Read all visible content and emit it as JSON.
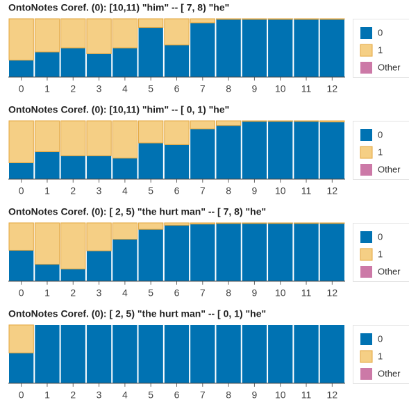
{
  "chart_data": [
    {
      "type": "stacked-bar",
      "title": "OntoNotes Coref. (0): [10,11) \"him\" -- [ 7, 8) \"he\"",
      "categories": [
        "0",
        "1",
        "2",
        "3",
        "4",
        "5",
        "6",
        "7",
        "8",
        "9",
        "10",
        "11",
        "12"
      ],
      "ylim": [
        0,
        1
      ],
      "series": [
        {
          "name": "0",
          "color": "#0072b2",
          "values": [
            0.29,
            0.43,
            0.5,
            0.4,
            0.5,
            0.85,
            0.55,
            0.93,
            0.99,
            0.99,
            0.99,
            0.99,
            0.99
          ]
        },
        {
          "name": "1",
          "color": "#f5cf85",
          "values": [
            0.71,
            0.57,
            0.5,
            0.6,
            0.5,
            0.15,
            0.45,
            0.07,
            0.01,
            0.01,
            0.01,
            0.01,
            0.01
          ]
        },
        {
          "name": "Other",
          "color": "#cc79a7",
          "values": [
            0,
            0,
            0,
            0,
            0,
            0,
            0,
            0,
            0,
            0,
            0,
            0,
            0
          ]
        }
      ]
    },
    {
      "type": "stacked-bar",
      "title": "OntoNotes Coref. (0): [10,11) \"him\" -- [ 0, 1) \"he\"",
      "categories": [
        "0",
        "1",
        "2",
        "3",
        "4",
        "5",
        "6",
        "7",
        "8",
        "9",
        "10",
        "11",
        "12"
      ],
      "ylim": [
        0,
        1
      ],
      "series": [
        {
          "name": "0",
          "color": "#0072b2",
          "values": [
            0.28,
            0.47,
            0.4,
            0.4,
            0.36,
            0.62,
            0.59,
            0.86,
            0.92,
            0.99,
            0.99,
            0.99,
            0.98
          ]
        },
        {
          "name": "1",
          "color": "#f5cf85",
          "values": [
            0.72,
            0.53,
            0.6,
            0.6,
            0.64,
            0.38,
            0.41,
            0.14,
            0.08,
            0.01,
            0.01,
            0.01,
            0.02
          ]
        },
        {
          "name": "Other",
          "color": "#cc79a7",
          "values": [
            0,
            0,
            0,
            0,
            0,
            0,
            0,
            0,
            0,
            0,
            0,
            0,
            0
          ]
        }
      ]
    },
    {
      "type": "stacked-bar",
      "title": "OntoNotes Coref. (0): [ 2, 5) \"the hurt man\" -- [ 7, 8) \"he\"",
      "categories": [
        "0",
        "1",
        "2",
        "3",
        "4",
        "5",
        "6",
        "7",
        "8",
        "9",
        "10",
        "11",
        "12"
      ],
      "ylim": [
        0,
        1
      ],
      "series": [
        {
          "name": "0",
          "color": "#0072b2",
          "values": [
            0.53,
            0.29,
            0.21,
            0.52,
            0.72,
            0.89,
            0.96,
            0.98,
            0.99,
            0.99,
            0.99,
            0.99,
            0.99
          ]
        },
        {
          "name": "1",
          "color": "#f5cf85",
          "values": [
            0.47,
            0.71,
            0.79,
            0.48,
            0.28,
            0.11,
            0.04,
            0.02,
            0.01,
            0.01,
            0.01,
            0.01,
            0.01
          ]
        },
        {
          "name": "Other",
          "color": "#cc79a7",
          "values": [
            0,
            0,
            0,
            0,
            0,
            0,
            0,
            0,
            0,
            0,
            0,
            0,
            0
          ]
        }
      ]
    },
    {
      "type": "stacked-bar",
      "title": "OntoNotes Coref. (0): [ 2, 5) \"the hurt man\" -- [ 0, 1) \"he\"",
      "categories": [
        "0",
        "1",
        "2",
        "3",
        "4",
        "5",
        "6",
        "7",
        "8",
        "9",
        "10",
        "11",
        "12"
      ],
      "ylim": [
        0,
        1
      ],
      "series": [
        {
          "name": "0",
          "color": "#0072b2",
          "values": [
            0.52,
            1,
            1,
            1,
            1,
            1,
            1,
            1,
            1,
            1,
            1,
            1,
            1
          ]
        },
        {
          "name": "1",
          "color": "#f5cf85",
          "values": [
            0.48,
            0,
            0,
            0,
            0,
            0,
            0,
            0,
            0,
            0,
            0,
            0,
            0
          ]
        },
        {
          "name": "Other",
          "color": "#cc79a7",
          "values": [
            0,
            0,
            0,
            0,
            0,
            0,
            0,
            0,
            0,
            0,
            0,
            0,
            0
          ]
        }
      ]
    }
  ]
}
